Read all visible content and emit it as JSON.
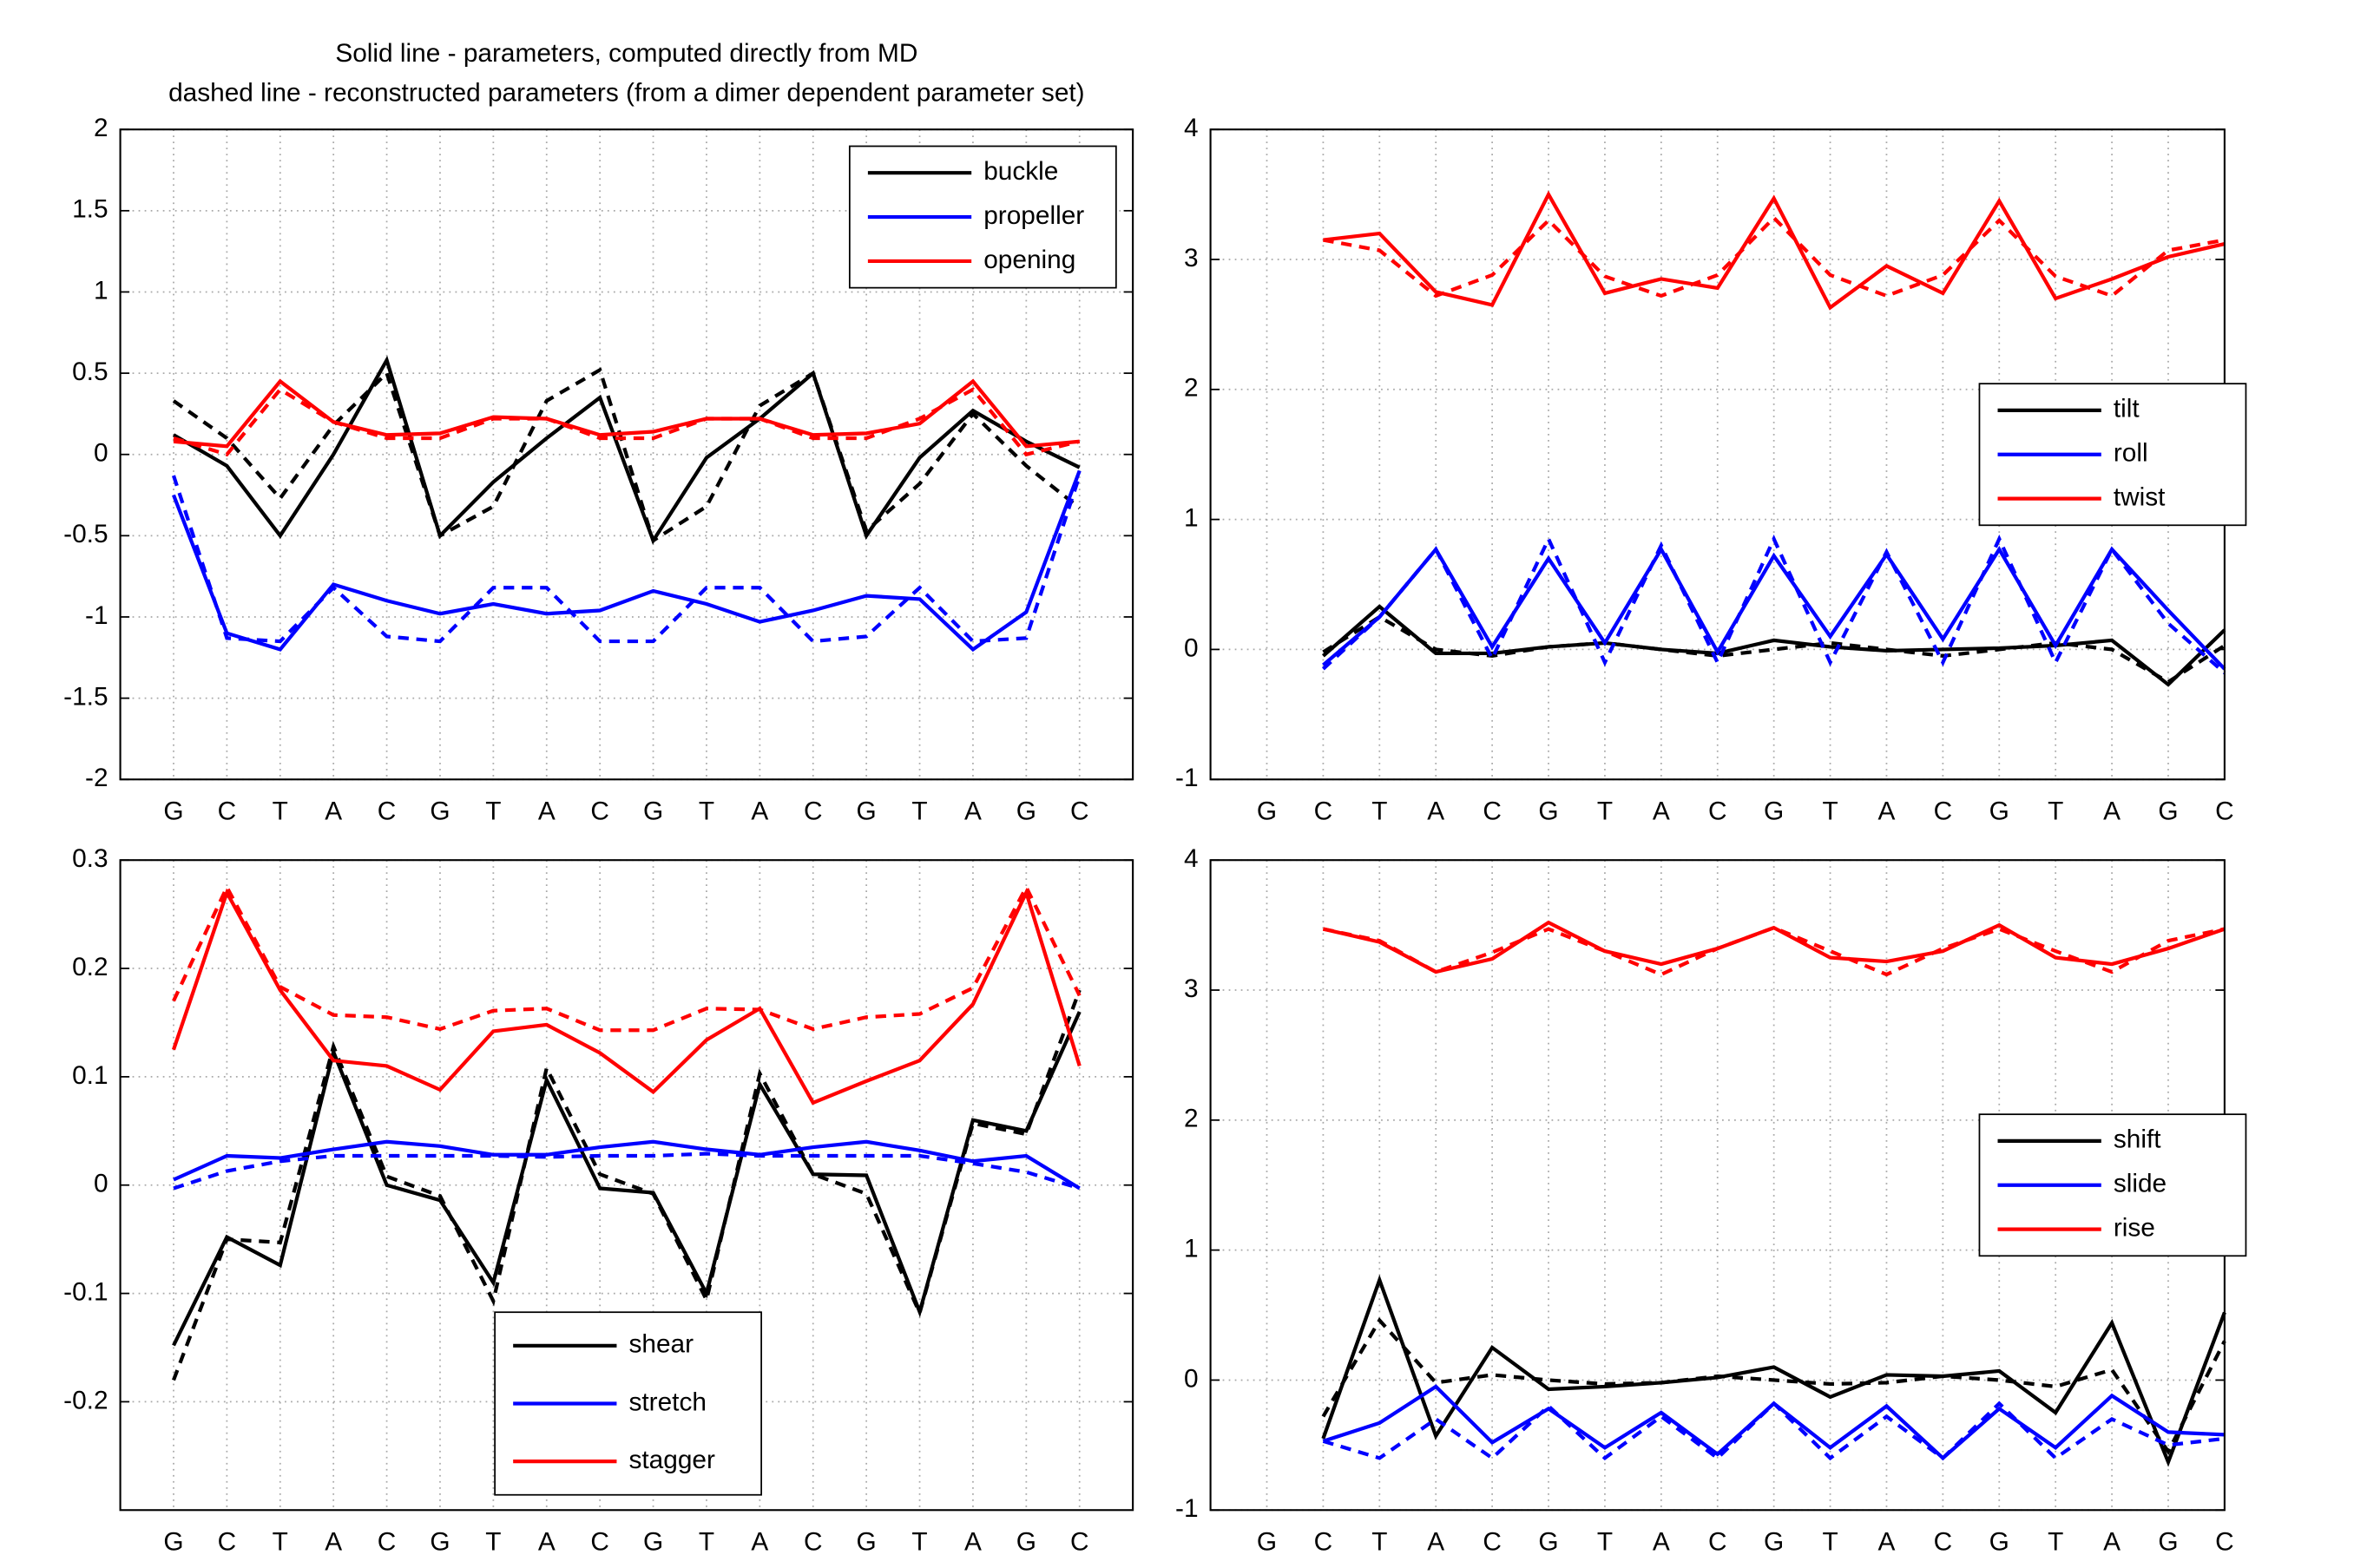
{
  "chart_data": [
    {
      "type": "line",
      "title": [
        "Solid line - parameters, computed directly from MD",
        "dashed line - reconstructed parameters (from a dimer dependent parameter set)"
      ],
      "categories": [
        "G",
        "C",
        "T",
        "A",
        "C",
        "G",
        "T",
        "A",
        "C",
        "G",
        "T",
        "A",
        "C",
        "G",
        "T",
        "A",
        "G",
        "C"
      ],
      "xlim": [
        0,
        19
      ],
      "ylim": [
        -2,
        2
      ],
      "yticks": [
        -2,
        -1.5,
        -1,
        -0.5,
        0,
        0.5,
        1,
        1.5,
        2
      ],
      "grid": true,
      "legend": "upper right",
      "series": [
        {
          "name": "buckle",
          "color": "#000000",
          "values": [
            0.12,
            -0.07,
            -0.5,
            0.0,
            0.58,
            -0.5,
            -0.17,
            0.1,
            0.35,
            -0.53,
            -0.02,
            0.22,
            0.5,
            -0.5,
            -0.02,
            0.27,
            0.08,
            -0.08
          ],
          "reconstructed_values": [
            0.33,
            0.1,
            -0.27,
            0.18,
            0.5,
            -0.5,
            -0.32,
            0.33,
            0.52,
            -0.53,
            -0.32,
            0.3,
            0.5,
            -0.47,
            -0.18,
            0.25,
            -0.07,
            -0.33
          ]
        },
        {
          "name": "propeller",
          "color": "#0000ff",
          "values": [
            -0.25,
            -1.1,
            -1.2,
            -0.8,
            -0.9,
            -0.98,
            -0.92,
            -0.98,
            -0.96,
            -0.84,
            -0.92,
            -1.03,
            -0.96,
            -0.87,
            -0.89,
            -1.2,
            -0.97,
            -0.1
          ],
          "reconstructed_values": [
            -0.13,
            -1.13,
            -1.15,
            -0.82,
            -1.12,
            -1.15,
            -0.82,
            -0.82,
            -1.15,
            -1.15,
            -0.82,
            -0.82,
            -1.15,
            -1.12,
            -0.82,
            -1.15,
            -1.13,
            -0.13
          ]
        },
        {
          "name": "opening",
          "color": "#ff0000",
          "values": [
            0.08,
            0.05,
            0.45,
            0.2,
            0.12,
            0.13,
            0.23,
            0.22,
            0.12,
            0.14,
            0.22,
            0.22,
            0.12,
            0.13,
            0.19,
            0.45,
            0.05,
            0.08
          ],
          "reconstructed_values": [
            0.1,
            0.0,
            0.4,
            0.2,
            0.1,
            0.1,
            0.22,
            0.22,
            0.1,
            0.1,
            0.22,
            0.22,
            0.1,
            0.1,
            0.22,
            0.4,
            0.0,
            0.08
          ]
        }
      ]
    },
    {
      "type": "line",
      "categories": [
        "G",
        "C",
        "T",
        "A",
        "C",
        "G",
        "T",
        "A",
        "C",
        "G",
        "T",
        "A",
        "C",
        "G",
        "T",
        "A",
        "G",
        "C"
      ],
      "xlim": [
        0,
        18
      ],
      "ylim": [
        -1,
        4
      ],
      "yticks": [
        -1,
        0,
        1,
        2,
        3,
        4
      ],
      "grid": true,
      "legend": "center right",
      "series": [
        {
          "name": "tilt",
          "color": "#000000",
          "values": [
            null,
            -0.05,
            0.33,
            -0.03,
            -0.03,
            0.02,
            0.05,
            0.0,
            -0.03,
            0.07,
            0.02,
            -0.01,
            0.0,
            0.01,
            0.03,
            0.07,
            -0.27,
            0.15
          ],
          "reconstructed_values": [
            null,
            -0.02,
            0.25,
            0.0,
            -0.05,
            0.02,
            0.05,
            0.0,
            -0.05,
            0.0,
            0.05,
            0.0,
            -0.05,
            0.0,
            0.05,
            0.0,
            -0.25,
            0.03
          ]
        },
        {
          "name": "roll",
          "color": "#0000ff",
          "values": [
            null,
            -0.12,
            0.25,
            0.77,
            0.02,
            0.7,
            0.05,
            0.77,
            -0.02,
            0.72,
            0.1,
            0.73,
            0.08,
            0.77,
            0.03,
            0.77,
            0.3,
            -0.15
          ],
          "reconstructed_values": [
            null,
            -0.15,
            0.25,
            0.77,
            -0.07,
            0.85,
            -0.1,
            0.8,
            -0.1,
            0.85,
            -0.1,
            0.75,
            -0.1,
            0.85,
            -0.1,
            0.77,
            0.2,
            -0.18
          ]
        },
        {
          "name": "twist",
          "color": "#ff0000",
          "values": [
            null,
            3.15,
            3.2,
            2.75,
            2.65,
            3.5,
            2.74,
            2.85,
            2.78,
            3.47,
            2.63,
            2.95,
            2.74,
            3.45,
            2.7,
            2.85,
            3.02,
            3.12
          ],
          "reconstructed_values": [
            null,
            3.15,
            3.07,
            2.72,
            2.88,
            3.3,
            2.87,
            2.72,
            2.88,
            3.32,
            2.88,
            2.72,
            2.88,
            3.3,
            2.87,
            2.72,
            3.07,
            3.15
          ]
        }
      ]
    },
    {
      "type": "line",
      "categories": [
        "G",
        "C",
        "T",
        "A",
        "C",
        "G",
        "T",
        "A",
        "C",
        "G",
        "T",
        "A",
        "C",
        "G",
        "T",
        "A",
        "G",
        "C"
      ],
      "xlim": [
        0,
        19
      ],
      "ylim": [
        -0.3,
        0.3
      ],
      "yticks": [
        -0.2,
        -0.1,
        0,
        0.1,
        0.2,
        0.3
      ],
      "grid": true,
      "legend": "lower center",
      "series": [
        {
          "name": "shear",
          "color": "#000000",
          "values": [
            -0.148,
            -0.048,
            -0.074,
            0.123,
            0.0,
            -0.014,
            -0.09,
            0.097,
            -0.003,
            -0.007,
            -0.1,
            0.093,
            0.01,
            0.009,
            -0.117,
            0.06,
            0.05,
            0.16
          ],
          "reconstructed_values": [
            -0.18,
            -0.05,
            -0.053,
            0.128,
            0.008,
            -0.01,
            -0.107,
            0.108,
            0.01,
            -0.008,
            -0.106,
            0.103,
            0.01,
            -0.008,
            -0.118,
            0.057,
            0.047,
            0.18
          ]
        },
        {
          "name": "stretch",
          "color": "#0000ff",
          "values": [
            0.005,
            0.027,
            0.025,
            0.033,
            0.04,
            0.036,
            0.028,
            0.028,
            0.035,
            0.04,
            0.033,
            0.028,
            0.035,
            0.04,
            0.032,
            0.022,
            0.027,
            -0.003
          ],
          "reconstructed_values": [
            -0.003,
            0.013,
            0.022,
            0.027,
            0.027,
            0.027,
            0.027,
            0.026,
            0.027,
            0.027,
            0.029,
            0.027,
            0.027,
            0.027,
            0.027,
            0.02,
            0.012,
            -0.003
          ]
        },
        {
          "name": "stagger",
          "color": "#ff0000",
          "values": [
            0.125,
            0.27,
            0.18,
            0.115,
            0.11,
            0.088,
            0.142,
            0.148,
            0.122,
            0.086,
            0.134,
            0.163,
            0.076,
            0.096,
            0.115,
            0.167,
            0.27,
            0.11
          ],
          "reconstructed_values": [
            0.17,
            0.275,
            0.183,
            0.157,
            0.155,
            0.144,
            0.161,
            0.163,
            0.143,
            0.143,
            0.163,
            0.162,
            0.144,
            0.155,
            0.158,
            0.182,
            0.275,
            0.175
          ]
        }
      ]
    },
    {
      "type": "line",
      "categories": [
        "G",
        "C",
        "T",
        "A",
        "C",
        "G",
        "T",
        "A",
        "C",
        "G",
        "T",
        "A",
        "C",
        "G",
        "T",
        "A",
        "G",
        "C"
      ],
      "xlim": [
        0,
        18
      ],
      "ylim": [
        -1,
        4
      ],
      "yticks": [
        -1,
        0,
        1,
        2,
        3,
        4
      ],
      "grid": true,
      "legend": "center right",
      "series": [
        {
          "name": "shift",
          "color": "#000000",
          "values": [
            null,
            -0.45,
            0.77,
            -0.43,
            0.25,
            -0.07,
            -0.05,
            -0.02,
            0.02,
            0.1,
            -0.13,
            0.04,
            0.03,
            0.07,
            -0.25,
            0.44,
            -0.63,
            0.52
          ],
          "reconstructed_values": [
            null,
            -0.28,
            0.46,
            -0.02,
            0.04,
            0.0,
            -0.03,
            -0.02,
            0.03,
            0.0,
            -0.03,
            -0.02,
            0.03,
            0.0,
            -0.05,
            0.08,
            -0.55,
            0.3
          ]
        },
        {
          "name": "slide",
          "color": "#0000ff",
          "values": [
            null,
            -0.47,
            -0.33,
            -0.05,
            -0.48,
            -0.22,
            -0.52,
            -0.25,
            -0.57,
            -0.18,
            -0.52,
            -0.2,
            -0.6,
            -0.22,
            -0.52,
            -0.12,
            -0.4,
            -0.42
          ],
          "reconstructed_values": [
            null,
            -0.47,
            -0.6,
            -0.3,
            -0.6,
            -0.2,
            -0.6,
            -0.28,
            -0.6,
            -0.18,
            -0.6,
            -0.28,
            -0.6,
            -0.18,
            -0.6,
            -0.3,
            -0.5,
            -0.45
          ]
        },
        {
          "name": "rise",
          "color": "#ff0000",
          "values": [
            null,
            3.47,
            3.37,
            3.14,
            3.24,
            3.52,
            3.3,
            3.2,
            3.32,
            3.48,
            3.25,
            3.22,
            3.3,
            3.5,
            3.25,
            3.2,
            3.32,
            3.47
          ],
          "reconstructed_values": [
            null,
            3.47,
            3.38,
            3.14,
            3.29,
            3.47,
            3.3,
            3.12,
            3.32,
            3.48,
            3.3,
            3.12,
            3.32,
            3.47,
            3.3,
            3.14,
            3.38,
            3.47
          ]
        }
      ]
    }
  ]
}
